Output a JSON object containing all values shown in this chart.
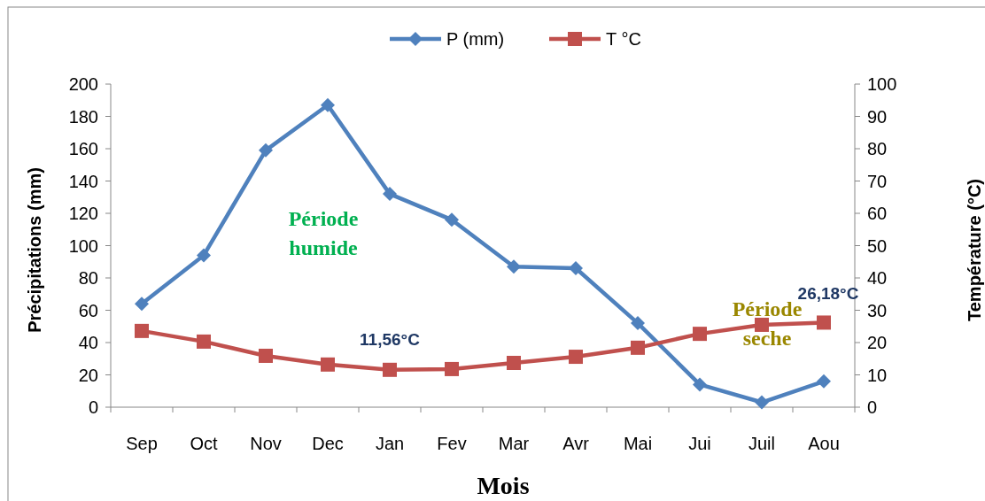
{
  "chart_data": {
    "type": "line",
    "xlabel": "Mois",
    "ylabel": "Précipitations (mm)",
    "y2label": "Température (°C)",
    "categories": [
      "Sep",
      "Oct",
      "Nov",
      "Dec",
      "Jan",
      "Fev",
      "Mar",
      "Avr",
      "Mai",
      "Jui",
      "Juil",
      "Aou"
    ],
    "series": [
      {
        "name": "P (mm)",
        "color": "#4f81bd",
        "marker": "diamond",
        "values": [
          64,
          94,
          159,
          187,
          132,
          116,
          87,
          86,
          52,
          14,
          3,
          16
        ]
      },
      {
        "name": "T °C",
        "color": "#c0504d",
        "marker": "square",
        "axis": "y2",
        "values": [
          23.6,
          20.3,
          15.9,
          13.2,
          11.56,
          11.8,
          13.7,
          15.6,
          18.4,
          22.7,
          25.5,
          26.18
        ]
      }
    ],
    "ylim": [
      0,
      200
    ],
    "yticks": [
      0,
      20,
      40,
      60,
      80,
      100,
      120,
      140,
      160,
      180,
      200
    ],
    "y2lim": [
      0,
      100
    ],
    "y2ticks": [
      0,
      10,
      20,
      30,
      40,
      50,
      60,
      70,
      80,
      90,
      100
    ],
    "annotations": [
      "Période humide",
      "Période seche",
      "11,56°C",
      "26,18°C"
    ],
    "legend": "top",
    "grid": false,
    "line_style": "solid"
  }
}
